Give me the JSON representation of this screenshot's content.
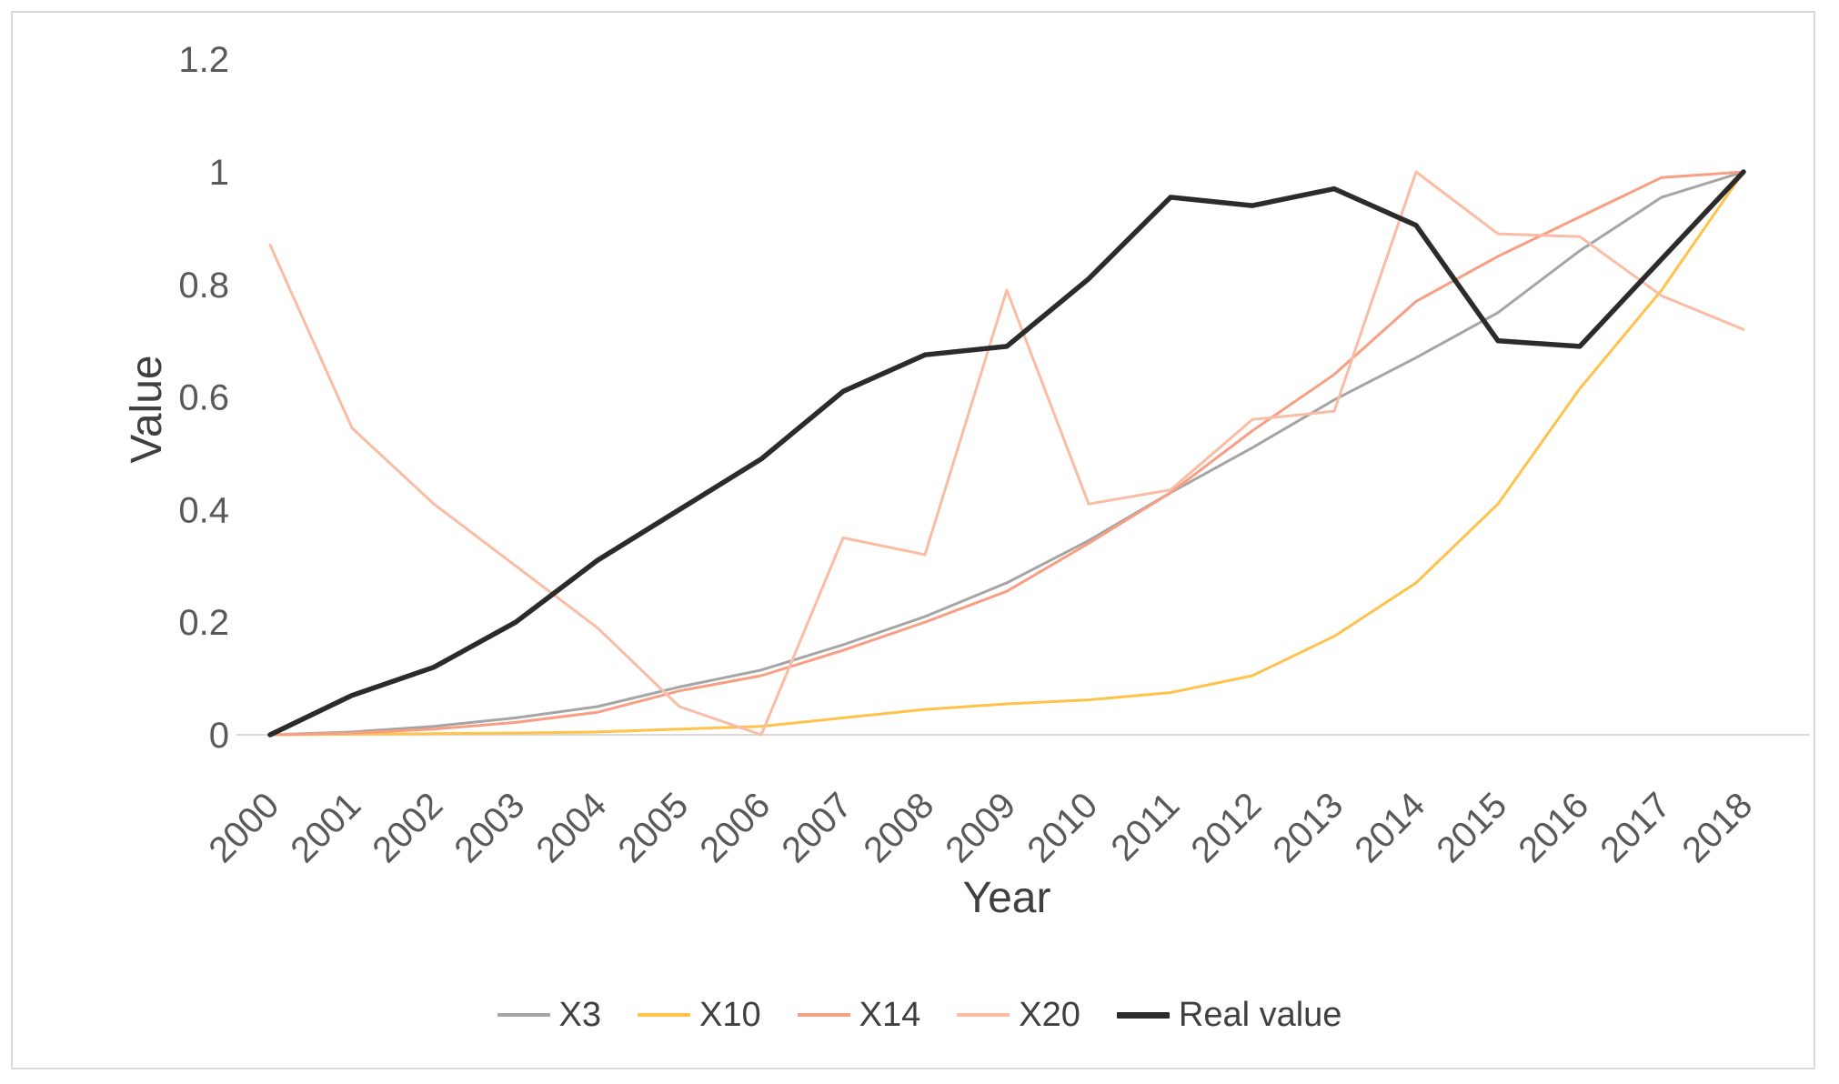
{
  "page": {
    "background": "#FFFFFF",
    "frame_border_color": "#D9D9D9"
  },
  "chart_data": {
    "type": "line",
    "title": "",
    "xlabel": "Year",
    "ylabel": "Value",
    "grid": "off",
    "legend_position": "bottom",
    "axis_line_color": "#D9D9D9",
    "tick_text_color": "#595959",
    "title_text_color": "#404040",
    "ylim": [
      0,
      1.2
    ],
    "y_tick_values": [
      0,
      0.2,
      0.4,
      0.6,
      0.8,
      1,
      1.2
    ],
    "y_tick_labels": [
      "0",
      "0.2",
      "0.4",
      "0.6",
      "0.8",
      "1",
      "1.2"
    ],
    "x_labels": [
      "2000",
      "2001",
      "2002",
      "2003",
      "2004",
      "2005",
      "2006",
      "2007",
      "2008",
      "2009",
      "2010",
      "2011",
      "2012",
      "2013",
      "2014",
      "2015",
      "2016",
      "2017",
      "2018"
    ],
    "series": [
      {
        "name": "X3",
        "color": "#A5A5A5",
        "stroke_width": 3,
        "values": [
          0,
          0.005,
          0.015,
          0.03,
          0.05,
          0.085,
          0.115,
          0.16,
          0.21,
          0.27,
          0.345,
          0.43,
          0.51,
          0.595,
          0.67,
          0.75,
          0.86,
          0.955,
          1
        ]
      },
      {
        "name": "X10",
        "color": "#FFC24A",
        "stroke_width": 3,
        "values": [
          0,
          0.001,
          0.002,
          0.003,
          0.005,
          0.01,
          0.015,
          0.03,
          0.045,
          0.055,
          0.062,
          0.075,
          0.105,
          0.175,
          0.27,
          0.41,
          0.615,
          0.79,
          1
        ]
      },
      {
        "name": "X14",
        "color": "#F89E82",
        "stroke_width": 3,
        "values": [
          0,
          0.003,
          0.01,
          0.022,
          0.04,
          0.078,
          0.105,
          0.15,
          0.2,
          0.255,
          0.34,
          0.43,
          0.54,
          0.64,
          0.77,
          0.85,
          0.92,
          0.99,
          1
        ]
      },
      {
        "name": "X20",
        "color": "#FABCA4",
        "stroke_width": 3,
        "values": [
          0.87,
          0.545,
          0.41,
          0.3,
          0.19,
          0.05,
          0,
          0.35,
          0.32,
          0.79,
          0.41,
          0.435,
          0.56,
          0.575,
          1,
          0.89,
          0.885,
          0.78,
          0.72
        ]
      },
      {
        "name": "Real value",
        "color": "#2B2B2B",
        "stroke_width": 5.5,
        "values": [
          0,
          0.07,
          0.12,
          0.2,
          0.31,
          0.4,
          0.49,
          0.61,
          0.675,
          0.69,
          0.81,
          0.955,
          0.94,
          0.97,
          0.905,
          0.7,
          0.69,
          0.845,
          1
        ]
      }
    ]
  }
}
